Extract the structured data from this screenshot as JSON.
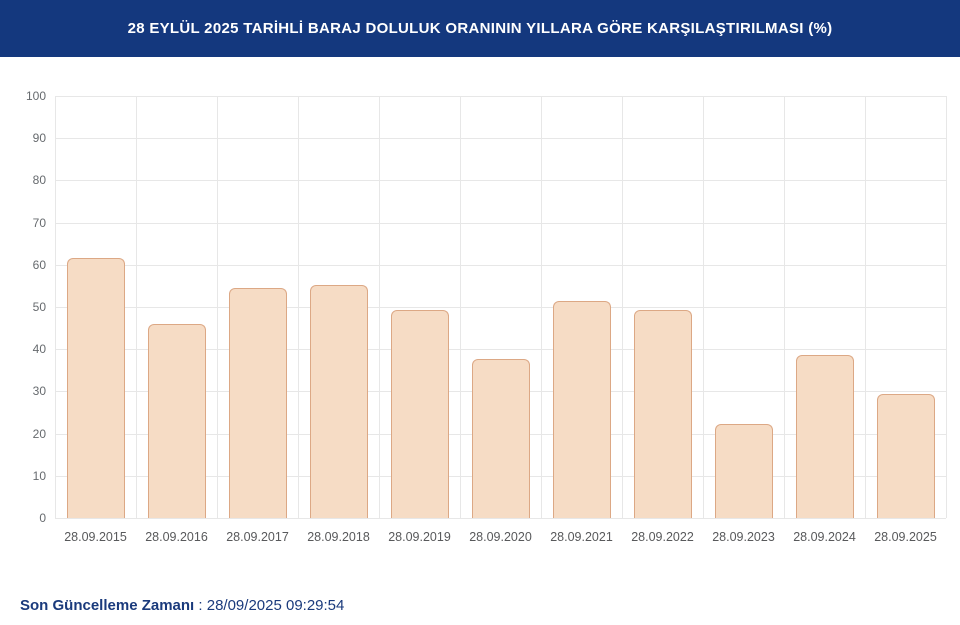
{
  "header": {
    "title": "28 EYLÜL 2025 TARİHLİ BARAJ DOLULUK ORANININ YILLARA GÖRE KARŞILAŞTIRILMASI (%)"
  },
  "chart_data": {
    "type": "bar",
    "categories": [
      "28.09.2015",
      "28.09.2016",
      "28.09.2017",
      "28.09.2018",
      "28.09.2019",
      "28.09.2020",
      "28.09.2021",
      "28.09.2022",
      "28.09.2023",
      "28.09.2024",
      "28.09.2025"
    ],
    "values": [
      61.6,
      45.9,
      54.6,
      55.1,
      49.4,
      37.7,
      51.5,
      49.3,
      22.3,
      38.7,
      29.3
    ],
    "title": "",
    "xlabel": "",
    "ylabel": "",
    "ylim": [
      0,
      100
    ],
    "ytick_step": 10,
    "grid": true,
    "legend": "none"
  },
  "footer": {
    "label": "Son Güncelleme Zamanı",
    "separator": " : ",
    "value": "28/09/2025 09:29:54"
  },
  "colors": {
    "header_bg": "#14387E",
    "header_text": "#FFFFFF",
    "bar_fill": "#F6DCC5",
    "bar_border": "#DCA885",
    "grid": "#E7E7E7",
    "y_axis_text": "#666A6E",
    "x_axis_text": "#58595B",
    "footer_text": "#1A3A7C"
  }
}
